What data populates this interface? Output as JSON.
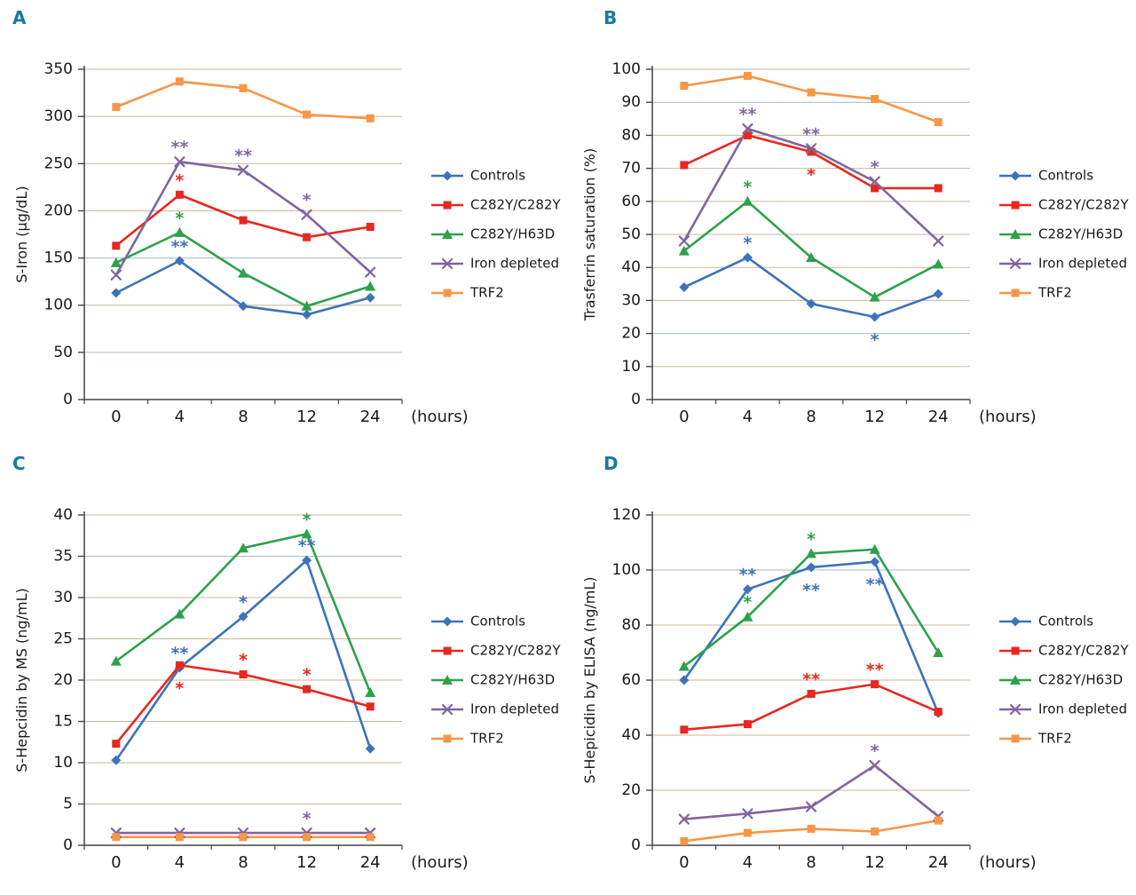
{
  "page": {
    "background": "#ffffff",
    "panel_letter_color": "#1779a3",
    "axis_color": "#444444",
    "grid_color": "#ccb69b",
    "grid_color_blue": "#9fb9cc",
    "text_color": "#1a1a1a"
  },
  "chart_data": [
    {
      "panel": "A",
      "type": "line",
      "ylabel": "S-Iron (µg/dL)",
      "x_unit": "(hours)",
      "categories": [
        "0",
        "4",
        "8",
        "12",
        "24"
      ],
      "ylim": [
        0,
        350
      ],
      "ystep": 50,
      "blue_gridlines": [
        150
      ],
      "legend_position": "right",
      "series": [
        {
          "name": "Controls",
          "color": "#3d73b8",
          "marker": "diamond",
          "values": [
            113,
            147,
            99,
            90,
            108
          ]
        },
        {
          "name": "C282Y/C282Y",
          "color": "#e8271f",
          "marker": "square",
          "values": [
            163,
            217,
            190,
            172,
            183
          ]
        },
        {
          "name": "C282Y/H63D",
          "color": "#2da14a",
          "marker": "triangle",
          "values": [
            145,
            177,
            134,
            99,
            120
          ]
        },
        {
          "name": "Iron depleted",
          "color": "#8064a2",
          "marker": "x",
          "values": [
            132,
            252,
            243,
            196,
            135
          ]
        },
        {
          "name": "TRF2",
          "color": "#f79646",
          "marker": "square",
          "values": [
            310,
            337,
            330,
            302,
            298
          ]
        }
      ],
      "annotations": [
        {
          "series_index": 3,
          "x_index": 1,
          "text": "**",
          "position": "above"
        },
        {
          "series_index": 1,
          "x_index": 1,
          "text": "*",
          "position": "above"
        },
        {
          "series_index": 2,
          "x_index": 1,
          "text": "*",
          "position": "above"
        },
        {
          "series_index": 0,
          "x_index": 1,
          "text": "**",
          "position": "above"
        },
        {
          "series_index": 3,
          "x_index": 2,
          "text": "**",
          "position": "above"
        },
        {
          "series_index": 3,
          "x_index": 3,
          "text": "*",
          "position": "above"
        }
      ]
    },
    {
      "panel": "B",
      "type": "line",
      "ylabel": "Trasferrin saturation (%)",
      "x_unit": "(hours)",
      "categories": [
        "0",
        "4",
        "8",
        "12",
        "24"
      ],
      "ylim": [
        0,
        100
      ],
      "ystep": 10,
      "blue_gridlines": [
        90,
        20
      ],
      "legend_position": "right",
      "series": [
        {
          "name": "Controls",
          "color": "#3d73b8",
          "marker": "diamond",
          "values": [
            34,
            43,
            29,
            25,
            32
          ]
        },
        {
          "name": "C282Y/C282Y",
          "color": "#e8271f",
          "marker": "square",
          "values": [
            71,
            80,
            75,
            64,
            64
          ]
        },
        {
          "name": "C282Y/H63D",
          "color": "#2da14a",
          "marker": "triangle",
          "values": [
            45,
            60,
            43,
            31,
            41
          ]
        },
        {
          "name": "Iron depleted",
          "color": "#8064a2",
          "marker": "x",
          "values": [
            48,
            82,
            76,
            66,
            48
          ]
        },
        {
          "name": "TRF2",
          "color": "#f79646",
          "marker": "square",
          "values": [
            95,
            98,
            93,
            91,
            84
          ]
        }
      ],
      "annotations": [
        {
          "series_index": 3,
          "x_index": 1,
          "text": "**",
          "position": "above"
        },
        {
          "series_index": 2,
          "x_index": 1,
          "text": "*",
          "position": "above"
        },
        {
          "series_index": 0,
          "x_index": 1,
          "text": "*",
          "position": "above"
        },
        {
          "series_index": 3,
          "x_index": 2,
          "text": "**",
          "position": "above"
        },
        {
          "series_index": 1,
          "x_index": 2,
          "text": "*",
          "position": "below"
        },
        {
          "series_index": 3,
          "x_index": 3,
          "text": "*",
          "position": "above"
        },
        {
          "series_index": 0,
          "x_index": 3,
          "text": "*",
          "position": "below"
        }
      ]
    },
    {
      "panel": "C",
      "type": "line",
      "ylabel": "S-Hepcidin by MS (ng/mL)",
      "x_unit": "(hours)",
      "categories": [
        "0",
        "4",
        "8",
        "12",
        "24"
      ],
      "ylim": [
        0,
        40
      ],
      "ystep": 5,
      "blue_gridlines": [
        35
      ],
      "legend_position": "right",
      "series": [
        {
          "name": "Controls",
          "color": "#3d73b8",
          "marker": "diamond",
          "values": [
            10.3,
            21.5,
            27.7,
            34.5,
            11.7
          ]
        },
        {
          "name": "C282Y/C282Y",
          "color": "#e8271f",
          "marker": "square",
          "values": [
            12.3,
            21.8,
            20.7,
            18.9,
            16.8
          ]
        },
        {
          "name": "C282Y/H63D",
          "color": "#2da14a",
          "marker": "triangle",
          "values": [
            22.3,
            28,
            36,
            37.7,
            18.5
          ]
        },
        {
          "name": "Iron depleted",
          "color": "#8064a2",
          "marker": "x",
          "values": [
            1.5,
            1.5,
            1.5,
            1.5,
            1.5
          ]
        },
        {
          "name": "TRF2",
          "color": "#f79646",
          "marker": "square",
          "values": [
            1.0,
            1.0,
            1.0,
            1.0,
            1.0
          ]
        }
      ],
      "annotations": [
        {
          "series_index": 0,
          "x_index": 1,
          "text": "**",
          "position": "above"
        },
        {
          "series_index": 1,
          "x_index": 1,
          "text": "*",
          "position": "below"
        },
        {
          "series_index": 0,
          "x_index": 2,
          "text": "*",
          "position": "above"
        },
        {
          "series_index": 1,
          "x_index": 2,
          "text": "*",
          "position": "above"
        },
        {
          "series_index": 2,
          "x_index": 3,
          "text": "*",
          "position": "above"
        },
        {
          "series_index": 0,
          "x_index": 3,
          "text": "**",
          "position": "above"
        },
        {
          "series_index": 1,
          "x_index": 3,
          "text": "*",
          "position": "above"
        },
        {
          "series_index": 3,
          "x_index": 3,
          "text": "*",
          "position": "above"
        }
      ]
    },
    {
      "panel": "D",
      "type": "line",
      "ylabel": "S-Hepicidin by ELISA (ng/mL)",
      "x_unit": "(hours)",
      "categories": [
        "0",
        "4",
        "8",
        "12",
        "24"
      ],
      "ylim": [
        0,
        120
      ],
      "ystep": 20,
      "blue_gridlines": [
        100
      ],
      "legend_position": "right",
      "series": [
        {
          "name": "Controls",
          "color": "#3d73b8",
          "marker": "diamond",
          "values": [
            60,
            93,
            101,
            103,
            48
          ]
        },
        {
          "name": "C282Y/C282Y",
          "color": "#e8271f",
          "marker": "square",
          "values": [
            42,
            44,
            55,
            58.5,
            48.5
          ]
        },
        {
          "name": "C282Y/H63D",
          "color": "#2da14a",
          "marker": "triangle",
          "values": [
            65,
            83,
            106,
            107.5,
            70
          ]
        },
        {
          "name": "Iron depleted",
          "color": "#8064a2",
          "marker": "x",
          "values": [
            9.5,
            11.5,
            14,
            29,
            10.5
          ]
        },
        {
          "name": "TRF2",
          "color": "#f79646",
          "marker": "square",
          "values": [
            1.5,
            4.5,
            6,
            5,
            9
          ]
        }
      ],
      "annotations": [
        {
          "series_index": 0,
          "x_index": 1,
          "text": "**",
          "position": "above"
        },
        {
          "series_index": 2,
          "x_index": 1,
          "text": "*",
          "position": "above"
        },
        {
          "series_index": 2,
          "x_index": 2,
          "text": "*",
          "position": "above"
        },
        {
          "series_index": 0,
          "x_index": 2,
          "text": "**",
          "position": "below"
        },
        {
          "series_index": 1,
          "x_index": 2,
          "text": "**",
          "position": "above"
        },
        {
          "series_index": 0,
          "x_index": 3,
          "text": "**",
          "position": "below"
        },
        {
          "series_index": 1,
          "x_index": 3,
          "text": "**",
          "position": "above"
        },
        {
          "series_index": 3,
          "x_index": 3,
          "text": "*",
          "position": "above"
        }
      ]
    }
  ]
}
